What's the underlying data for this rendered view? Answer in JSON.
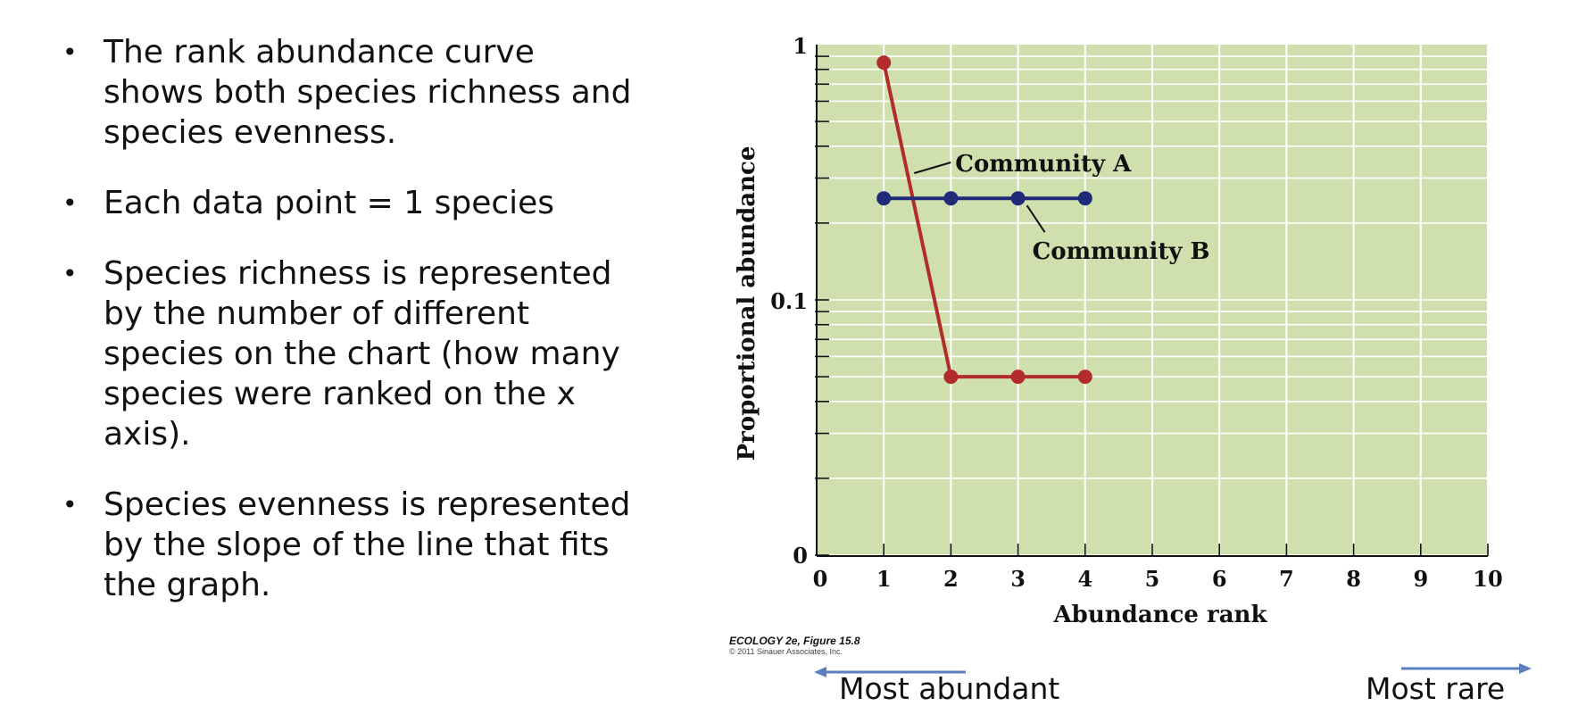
{
  "bullets": [
    "The rank abundance curve shows both species richness and species evenness.",
    "Each data point = 1 species",
    "Species richness is represented by the number of different species on the chart (how many species were ranked on the x axis).",
    "Species evenness is represented by the slope of the line that fits the graph."
  ],
  "credit": {
    "figure": "ECOLOGY 2e, Figure 15.8",
    "copyright": "© 2011 Sinauer Associates, Inc."
  },
  "captions": {
    "left": "Most abundant",
    "right": "Most rare"
  },
  "colors": {
    "plot_bg": "#cfe0ae",
    "community_a": "#b22c2c",
    "community_b": "#1f2a78",
    "arrow": "#5b7fc0"
  },
  "chart_data": {
    "type": "line",
    "title": "",
    "xlabel": "Abundance rank",
    "ylabel": "Proportional abundance",
    "xlim": [
      0,
      10
    ],
    "xticks": [
      "0",
      "1",
      "2",
      "3",
      "4",
      "5",
      "6",
      "7",
      "8",
      "9",
      "10"
    ],
    "yscale": "log",
    "ytick_labels": [
      "0",
      "0.1",
      "1"
    ],
    "grid": true,
    "series": [
      {
        "name": "Community A",
        "x": [
          1,
          2,
          3,
          4
        ],
        "y": [
          0.85,
          0.05,
          0.05,
          0.05
        ]
      },
      {
        "name": "Community B",
        "x": [
          1,
          2,
          3,
          4
        ],
        "y": [
          0.25,
          0.25,
          0.25,
          0.25
        ]
      }
    ]
  }
}
